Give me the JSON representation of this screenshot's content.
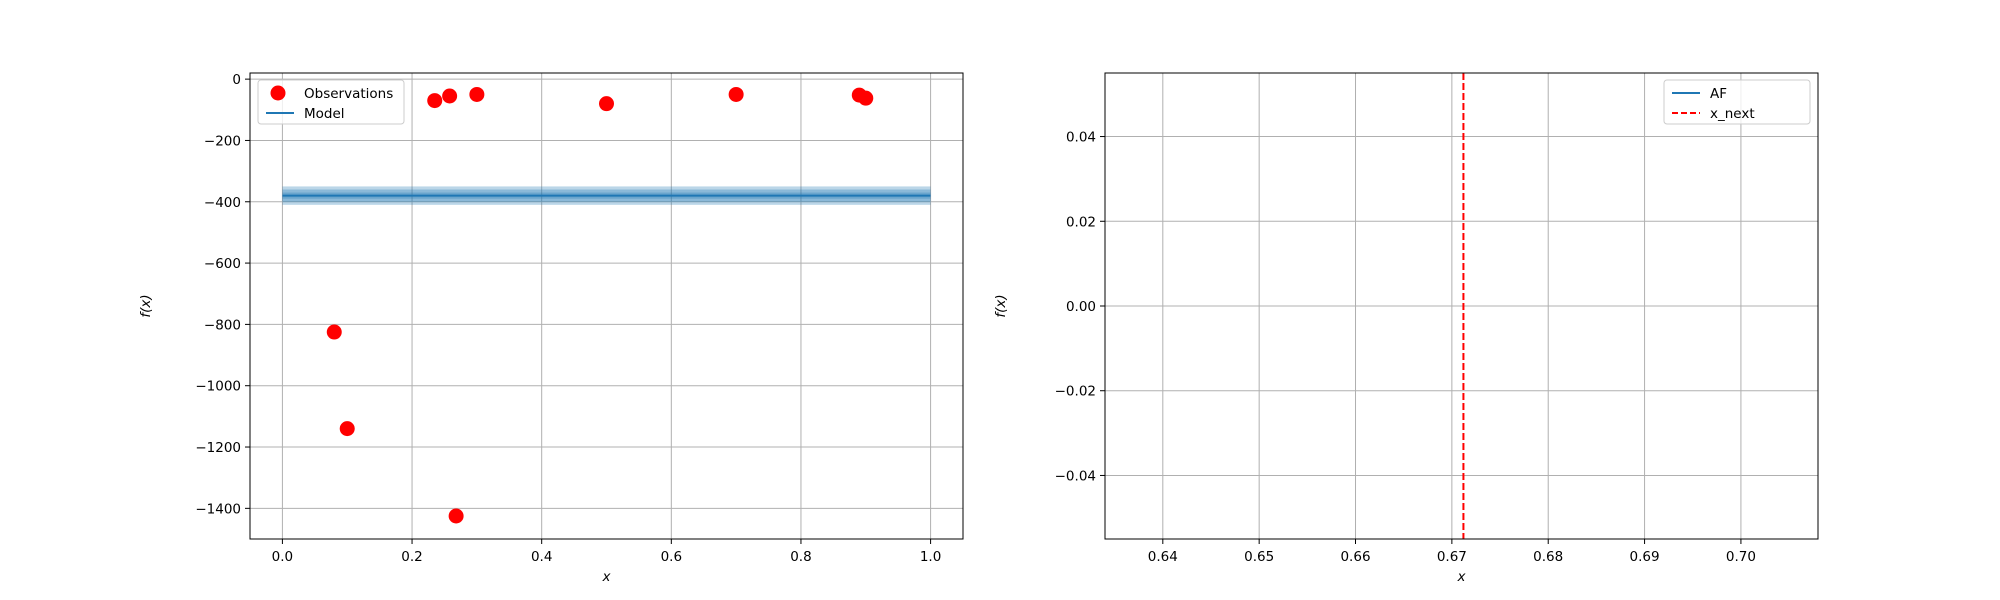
{
  "chart_data": [
    {
      "type": "scatter",
      "xlabel": "x",
      "ylabel": "f(x)",
      "xlim": [
        -0.05,
        1.05
      ],
      "ylim": [
        -1500,
        20
      ],
      "xticks": [
        "0.0",
        "0.2",
        "0.4",
        "0.6",
        "0.8",
        "1.0"
      ],
      "yticks": [
        "0",
        "−200",
        "−400",
        "−600",
        "−800",
        "−1000",
        "−1200",
        "−1400"
      ],
      "grid": true,
      "legend_position": "top-left",
      "series": [
        {
          "name": "Observations",
          "kind": "scatter",
          "color": "#ff0000",
          "x": [
            0.08,
            0.1,
            0.235,
            0.258,
            0.268,
            0.3,
            0.5,
            0.7,
            0.89,
            0.9
          ],
          "y": [
            -825,
            -1140,
            -70,
            -55,
            -1425,
            -50,
            -80,
            -50,
            -52,
            -62
          ]
        },
        {
          "name": "Model",
          "kind": "line",
          "color": "#1f77b4",
          "x": [
            0.0,
            1.0
          ],
          "y": [
            -380,
            -380
          ],
          "band_halfwidths": [
            10,
            20,
            30
          ]
        }
      ]
    },
    {
      "type": "line",
      "xlabel": "x",
      "ylabel": "f(x)",
      "xlim": [
        0.634,
        0.708
      ],
      "ylim": [
        -0.055,
        0.055
      ],
      "xticks": [
        "0.64",
        "0.65",
        "0.66",
        "0.67",
        "0.68",
        "0.69",
        "0.70"
      ],
      "yticks": [
        "0.04",
        "0.02",
        "0.00",
        "−0.02",
        "−0.04"
      ],
      "grid": true,
      "legend_position": "top-right",
      "series": [
        {
          "name": "AF",
          "kind": "line",
          "color": "#1f77b4",
          "x": [],
          "y": []
        },
        {
          "name": "x_next",
          "kind": "vline",
          "color": "#ff0000",
          "style": "dashed",
          "x": 0.6712
        }
      ]
    }
  ]
}
